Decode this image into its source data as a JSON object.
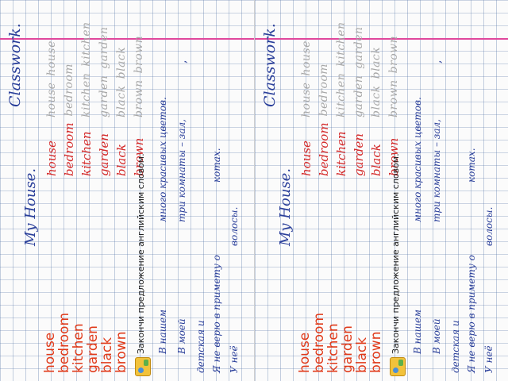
{
  "heading": "Classwork.",
  "title": "My House.",
  "words": [
    {
      "word": "house",
      "copies": [
        "house",
        "house"
      ]
    },
    {
      "word": "bedroom",
      "copies": [
        "bedroom"
      ]
    },
    {
      "word": "kitchen",
      "copies": [
        "kitchen",
        "kitchen"
      ]
    },
    {
      "word": "garden",
      "copies": [
        "garden",
        "garden"
      ]
    },
    {
      "word": "black",
      "copies": [
        "black",
        "black"
      ]
    },
    {
      "word": "brown",
      "copies": [
        "brown",
        "brown"
      ]
    }
  ],
  "task": {
    "instruction": "Закончи предложение английским словом:",
    "sentences": [
      {
        "start": "В нашем",
        "end": "много красивых цветов."
      },
      {
        "start": "В моей",
        "end": "три комнаты – зал,"
      },
      {
        "start": "детская и",
        "end": ""
      },
      {
        "start": "Я не верю в примету о",
        "end": "котах."
      },
      {
        "start": "У неё",
        "end": "волосы."
      }
    ],
    "comma": ","
  },
  "colors": {
    "margin_line": "#e0479c",
    "red_ink": "#d42a2a",
    "blue_ink": "#2a3f9a",
    "printed_words": "#e03a1a"
  }
}
